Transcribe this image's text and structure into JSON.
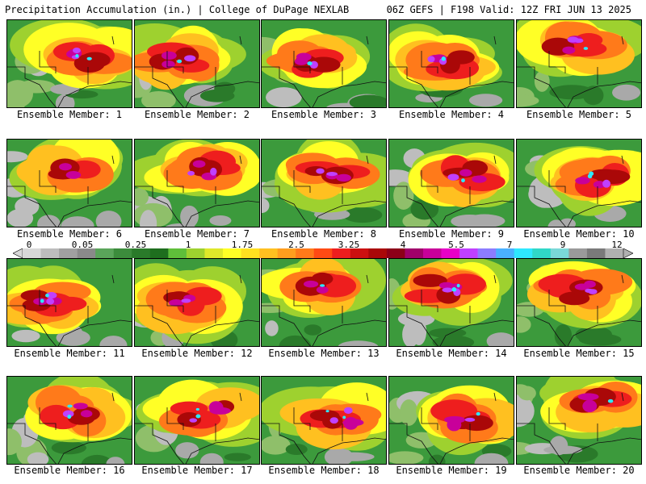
{
  "header": {
    "title": "Precipitation Accumulation (in.) | College of DuPage NEXLAB",
    "run_info": "06Z GEFS | F198 Valid: 12Z FRI JUN 13 2025"
  },
  "colorbar": {
    "ticks": [
      "0",
      "0.05",
      "0.25",
      "1",
      "1.75",
      "2.5",
      "3.25",
      "4",
      "5.5",
      "7",
      "9",
      "12"
    ],
    "colors": [
      "#d8d8d8",
      "#bdbdbd",
      "#a0a0a0",
      "#8a8a8a",
      "#5aa55a",
      "#3c8c3c",
      "#2a7a2a",
      "#1e6e1e",
      "#5fbf3a",
      "#9ed12f",
      "#dfe82a",
      "#ffff26",
      "#ffe020",
      "#ffc020",
      "#ff9e1e",
      "#ff7a1a",
      "#ff4a14",
      "#ee1e1e",
      "#cc1010",
      "#aa0808",
      "#8c0018",
      "#a0006a",
      "#c8009a",
      "#e800c8",
      "#c040ff",
      "#8c7cff",
      "#4ab0ff",
      "#2ee8ff",
      "#30d8c8",
      "#7ad8d8",
      "#9a9a9a",
      "#7a7a7a",
      "#b0b0b0"
    ]
  },
  "panels": [
    {
      "label": "Ensemble Member: 1"
    },
    {
      "label": "Ensemble Member: 2"
    },
    {
      "label": "Ensemble Member: 3"
    },
    {
      "label": "Ensemble Member: 4"
    },
    {
      "label": "Ensemble Member: 5"
    },
    {
      "label": "Ensemble Member: 6"
    },
    {
      "label": "Ensemble Member: 7"
    },
    {
      "label": "Ensemble Member: 8"
    },
    {
      "label": "Ensemble Member: 9"
    },
    {
      "label": "Ensemble Member: 10"
    },
    {
      "label": "Ensemble Member: 11"
    },
    {
      "label": "Ensemble Member: 12"
    },
    {
      "label": "Ensemble Member: 13"
    },
    {
      "label": "Ensemble Member: 14"
    },
    {
      "label": "Ensemble Member: 15"
    },
    {
      "label": "Ensemble Member: 16"
    },
    {
      "label": "Ensemble Member: 17"
    },
    {
      "label": "Ensemble Member: 18"
    },
    {
      "label": "Ensemble Member: 19"
    },
    {
      "label": "Ensemble Member: 20"
    }
  ]
}
